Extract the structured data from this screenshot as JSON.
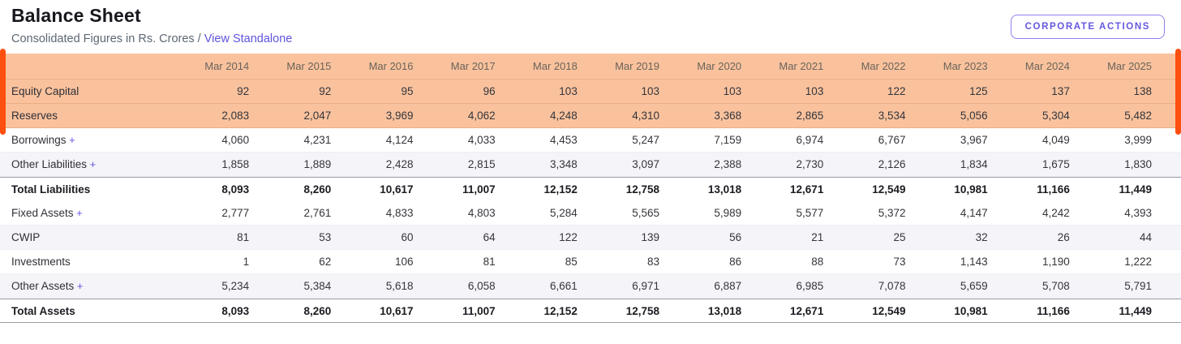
{
  "header": {
    "title": "Balance Sheet",
    "subtitle_prefix": "Consolidated Figures in Rs. Crores /",
    "standalone_link": "View Standalone",
    "corporate_actions_label": "CORPORATE ACTIONS"
  },
  "colors": {
    "accent_purple": "#6054dd",
    "highlight_bg": "#f9c29d",
    "highlight_edge_bar": "#fd4f10",
    "stripe_bg": "#f4f4f9"
  },
  "table": {
    "expand_symbol": "+",
    "columns": [
      "Mar 2014",
      "Mar 2015",
      "Mar 2016",
      "Mar 2017",
      "Mar 2018",
      "Mar 2019",
      "Mar 2020",
      "Mar 2021",
      "Mar 2022",
      "Mar 2023",
      "Mar 2024",
      "Mar 2025"
    ],
    "rows": [
      {
        "label": "Equity Capital",
        "expandable": false,
        "bold": false,
        "highlighted": true,
        "striped": false,
        "values": [
          "92",
          "92",
          "95",
          "96",
          "103",
          "103",
          "103",
          "103",
          "122",
          "125",
          "137",
          "138"
        ]
      },
      {
        "label": "Reserves",
        "expandable": false,
        "bold": false,
        "highlighted": true,
        "striped": false,
        "values": [
          "2,083",
          "2,047",
          "3,969",
          "4,062",
          "4,248",
          "4,310",
          "3,368",
          "2,865",
          "3,534",
          "5,056",
          "5,304",
          "5,482"
        ]
      },
      {
        "label": "Borrowings",
        "expandable": true,
        "bold": false,
        "highlighted": false,
        "striped": false,
        "values": [
          "4,060",
          "4,231",
          "4,124",
          "4,033",
          "4,453",
          "5,247",
          "7,159",
          "6,974",
          "6,767",
          "3,967",
          "4,049",
          "3,999"
        ]
      },
      {
        "label": "Other Liabilities",
        "expandable": true,
        "bold": false,
        "highlighted": false,
        "striped": true,
        "values": [
          "1,858",
          "1,889",
          "2,428",
          "2,815",
          "3,348",
          "3,097",
          "2,388",
          "2,730",
          "2,126",
          "1,834",
          "1,675",
          "1,830"
        ]
      },
      {
        "label": "Total Liabilities",
        "expandable": false,
        "bold": true,
        "highlighted": false,
        "striped": false,
        "values": [
          "8,093",
          "8,260",
          "10,617",
          "11,007",
          "12,152",
          "12,758",
          "13,018",
          "12,671",
          "12,549",
          "10,981",
          "11,166",
          "11,449"
        ]
      },
      {
        "label": "Fixed Assets",
        "expandable": true,
        "bold": false,
        "highlighted": false,
        "striped": false,
        "values": [
          "2,777",
          "2,761",
          "4,833",
          "4,803",
          "5,284",
          "5,565",
          "5,989",
          "5,577",
          "5,372",
          "4,147",
          "4,242",
          "4,393"
        ]
      },
      {
        "label": "CWIP",
        "expandable": false,
        "bold": false,
        "highlighted": false,
        "striped": true,
        "values": [
          "81",
          "53",
          "60",
          "64",
          "122",
          "139",
          "56",
          "21",
          "25",
          "32",
          "26",
          "44"
        ]
      },
      {
        "label": "Investments",
        "expandable": false,
        "bold": false,
        "highlighted": false,
        "striped": false,
        "values": [
          "1",
          "62",
          "106",
          "81",
          "85",
          "83",
          "86",
          "88",
          "73",
          "1,143",
          "1,190",
          "1,222"
        ]
      },
      {
        "label": "Other Assets",
        "expandable": true,
        "bold": false,
        "highlighted": false,
        "striped": true,
        "values": [
          "5,234",
          "5,384",
          "5,618",
          "6,058",
          "6,661",
          "6,971",
          "6,887",
          "6,985",
          "7,078",
          "5,659",
          "5,708",
          "5,791"
        ]
      },
      {
        "label": "Total Assets",
        "expandable": false,
        "bold": true,
        "highlighted": false,
        "striped": false,
        "values": [
          "8,093",
          "8,260",
          "10,617",
          "11,007",
          "12,152",
          "12,758",
          "13,018",
          "12,671",
          "12,549",
          "10,981",
          "11,166",
          "11,449"
        ]
      }
    ]
  }
}
